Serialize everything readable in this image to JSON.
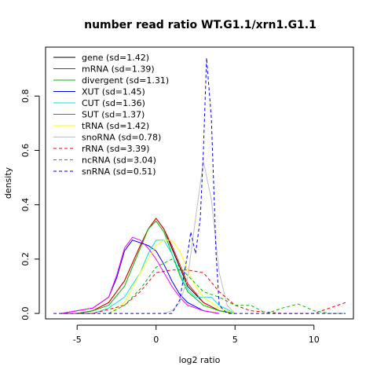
{
  "chart_data": {
    "type": "line",
    "title": "number read ratio WT.G1.1/xrn1.G1.1",
    "xlabel": "log2 ratio",
    "ylabel": "density",
    "xlim": [
      -7,
      12.5
    ],
    "ylim": [
      -0.02,
      0.98
    ],
    "xticks": [
      -5,
      0,
      5,
      10
    ],
    "yticks": [
      0.0,
      0.2,
      0.4,
      0.6,
      0.8
    ],
    "legend_position": "top-left",
    "grid": false,
    "series": [
      {
        "name": "gene (sd=1.42)",
        "color": "#000000",
        "dash": "solid",
        "x": [
          -5,
          -4,
          -3,
          -2,
          -1,
          -0.5,
          0,
          0.5,
          1,
          1.5,
          2,
          3,
          4,
          5
        ],
        "y": [
          0.0,
          0.01,
          0.04,
          0.12,
          0.25,
          0.31,
          0.35,
          0.31,
          0.24,
          0.17,
          0.1,
          0.04,
          0.01,
          0.0
        ]
      },
      {
        "name": "mRNA (sd=1.39)",
        "color": "#ff0000",
        "dash": "solid",
        "x": [
          -5,
          -4,
          -3,
          -2,
          -1,
          -0.5,
          0,
          0.5,
          1,
          1.5,
          2,
          3,
          4,
          5
        ],
        "y": [
          0.0,
          0.01,
          0.04,
          0.12,
          0.25,
          0.31,
          0.35,
          0.31,
          0.25,
          0.18,
          0.11,
          0.04,
          0.01,
          0.0
        ]
      },
      {
        "name": "divergent (sd=1.31)",
        "color": "#00bb00",
        "dash": "solid",
        "x": [
          -5,
          -4,
          -3,
          -2,
          -1,
          -0.5,
          0,
          0.5,
          1,
          1.5,
          2,
          3,
          4,
          5
        ],
        "y": [
          0.0,
          0.01,
          0.03,
          0.1,
          0.24,
          0.31,
          0.34,
          0.3,
          0.22,
          0.14,
          0.08,
          0.03,
          0.01,
          0.0
        ]
      },
      {
        "name": "XUT (sd=1.45)",
        "color": "#0000ff",
        "dash": "solid",
        "x": [
          -6,
          -5,
          -4,
          -3,
          -2.5,
          -2,
          -1.5,
          -1,
          -0.5,
          0,
          0.5,
          1,
          1.5,
          2,
          3,
          4
        ],
        "y": [
          0.0,
          0.01,
          0.02,
          0.06,
          0.13,
          0.23,
          0.27,
          0.26,
          0.25,
          0.23,
          0.18,
          0.12,
          0.07,
          0.04,
          0.01,
          0.0
        ]
      },
      {
        "name": "CUT (sd=1.36)",
        "color": "#00e5ee",
        "dash": "solid",
        "x": [
          -4,
          -3,
          -2,
          -1,
          -0.5,
          0,
          0.5,
          1,
          1.5,
          2,
          2.5,
          3,
          3.5,
          4,
          5
        ],
        "y": [
          0.0,
          0.02,
          0.06,
          0.15,
          0.22,
          0.27,
          0.27,
          0.22,
          0.15,
          0.09,
          0.06,
          0.06,
          0.06,
          0.03,
          0.0
        ]
      },
      {
        "name": "SUT (sd=1.37)",
        "color": "#ff00ff",
        "dash": "solid",
        "x": [
          -6,
          -5,
          -4,
          -3,
          -2.5,
          -2,
          -1.5,
          -1,
          -0.5,
          0,
          0.5,
          1,
          1.5,
          2,
          3,
          4
        ],
        "y": [
          0.0,
          0.01,
          0.02,
          0.06,
          0.14,
          0.24,
          0.28,
          0.27,
          0.24,
          0.2,
          0.15,
          0.1,
          0.06,
          0.03,
          0.01,
          0.0
        ]
      },
      {
        "name": "tRNA (sd=1.42)",
        "color": "#ffff00",
        "dash": "solid",
        "x": [
          -3,
          -2,
          -1,
          0,
          0.5,
          1,
          1.5,
          2,
          2.5,
          3,
          4,
          5
        ],
        "y": [
          0.0,
          0.04,
          0.15,
          0.25,
          0.27,
          0.27,
          0.23,
          0.16,
          0.1,
          0.06,
          0.02,
          0.0
        ]
      },
      {
        "name": "snoRNA (sd=0.78)",
        "color": "#bebebe",
        "dash": "solid",
        "x": [
          0.5,
          1,
          1.5,
          2,
          2.5,
          3,
          3.5,
          4,
          4.5,
          5
        ],
        "y": [
          0.0,
          0.01,
          0.04,
          0.13,
          0.35,
          0.56,
          0.42,
          0.15,
          0.03,
          0.0
        ]
      },
      {
        "name": "rRNA (sd=3.39)",
        "color": "#ff0000",
        "dash": "dashed",
        "x": [
          -6,
          -4,
          -2,
          -1,
          0,
          1,
          2,
          3,
          4,
          5,
          6,
          8,
          10,
          11,
          12
        ],
        "y": [
          0.0,
          0.0,
          0.03,
          0.08,
          0.15,
          0.16,
          0.16,
          0.15,
          0.08,
          0.03,
          0.01,
          0.0,
          0.0,
          0.02,
          0.04
        ]
      },
      {
        "name": "ncRNA (sd=3.04)",
        "color": "#00bb00",
        "dash": "dashed",
        "x": [
          -3,
          -2,
          -1,
          0,
          1,
          2,
          3,
          4,
          5,
          5.5,
          6,
          7,
          8,
          9,
          10,
          11,
          12
        ],
        "y": [
          0.0,
          0.03,
          0.09,
          0.17,
          0.2,
          0.14,
          0.08,
          0.06,
          0.03,
          0.03,
          0.03,
          0.0,
          0.02,
          0.035,
          0.01,
          0.0,
          0.0
        ]
      },
      {
        "name": "snRNA (sd=0.51)",
        "color": "#0000ff",
        "dash": "dashed",
        "x": [
          -6.5,
          1,
          1.5,
          2,
          2.2,
          2.5,
          2.8,
          3,
          3.2,
          3.5,
          3.8,
          4,
          4.5,
          12
        ],
        "y": [
          0.0,
          0.0,
          0.05,
          0.22,
          0.3,
          0.22,
          0.35,
          0.6,
          0.94,
          0.72,
          0.22,
          0.03,
          0.0,
          0.0
        ]
      }
    ]
  }
}
